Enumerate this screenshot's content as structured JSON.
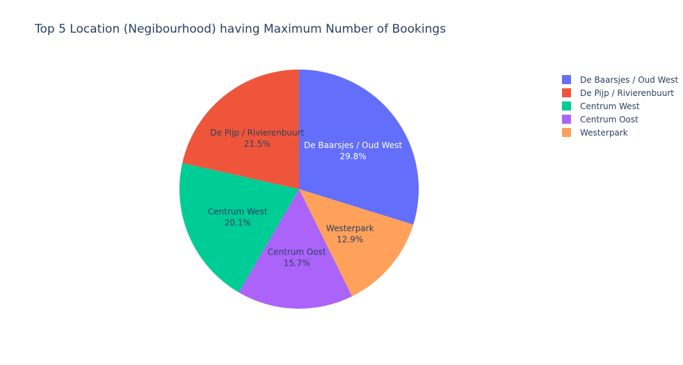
{
  "chart_data": {
    "type": "pie",
    "title": "Top 5 Location (Negibourhood) having Maximum Number of Bookings",
    "slices": [
      {
        "label": "De Baarsjes / Oud West",
        "percent": 29.8,
        "percent_text": "29.8%",
        "color": "#636efa",
        "text_color": "#ffffff"
      },
      {
        "label": "Westerpark",
        "percent": 12.9,
        "percent_text": "12.9%",
        "color": "#ffa15a",
        "text_color": "#2a3f5f"
      },
      {
        "label": "Centrum Oost",
        "percent": 15.7,
        "percent_text": "15.7%",
        "color": "#ab63fa",
        "text_color": "#2a3f5f"
      },
      {
        "label": "Centrum West",
        "percent": 20.1,
        "percent_text": "20.1%",
        "color": "#00cc96",
        "text_color": "#2a3f5f"
      },
      {
        "label": "De Pijp / Rivierenbuurt",
        "percent": 21.5,
        "percent_text": "21.5%",
        "color": "#ef553b",
        "text_color": "#2a3f5f"
      }
    ],
    "legend": {
      "placement": "top-right",
      "entries": [
        {
          "label": "De Baarsjes / Oud West",
          "color": "#636efa"
        },
        {
          "label": "De Pijp / Rivierenbuurt",
          "color": "#ef553b"
        },
        {
          "label": "Centrum West",
          "color": "#00cc96"
        },
        {
          "label": "Centrum Oost",
          "color": "#ab63fa"
        },
        {
          "label": "Westerpark",
          "color": "#ffa15a"
        }
      ]
    }
  }
}
